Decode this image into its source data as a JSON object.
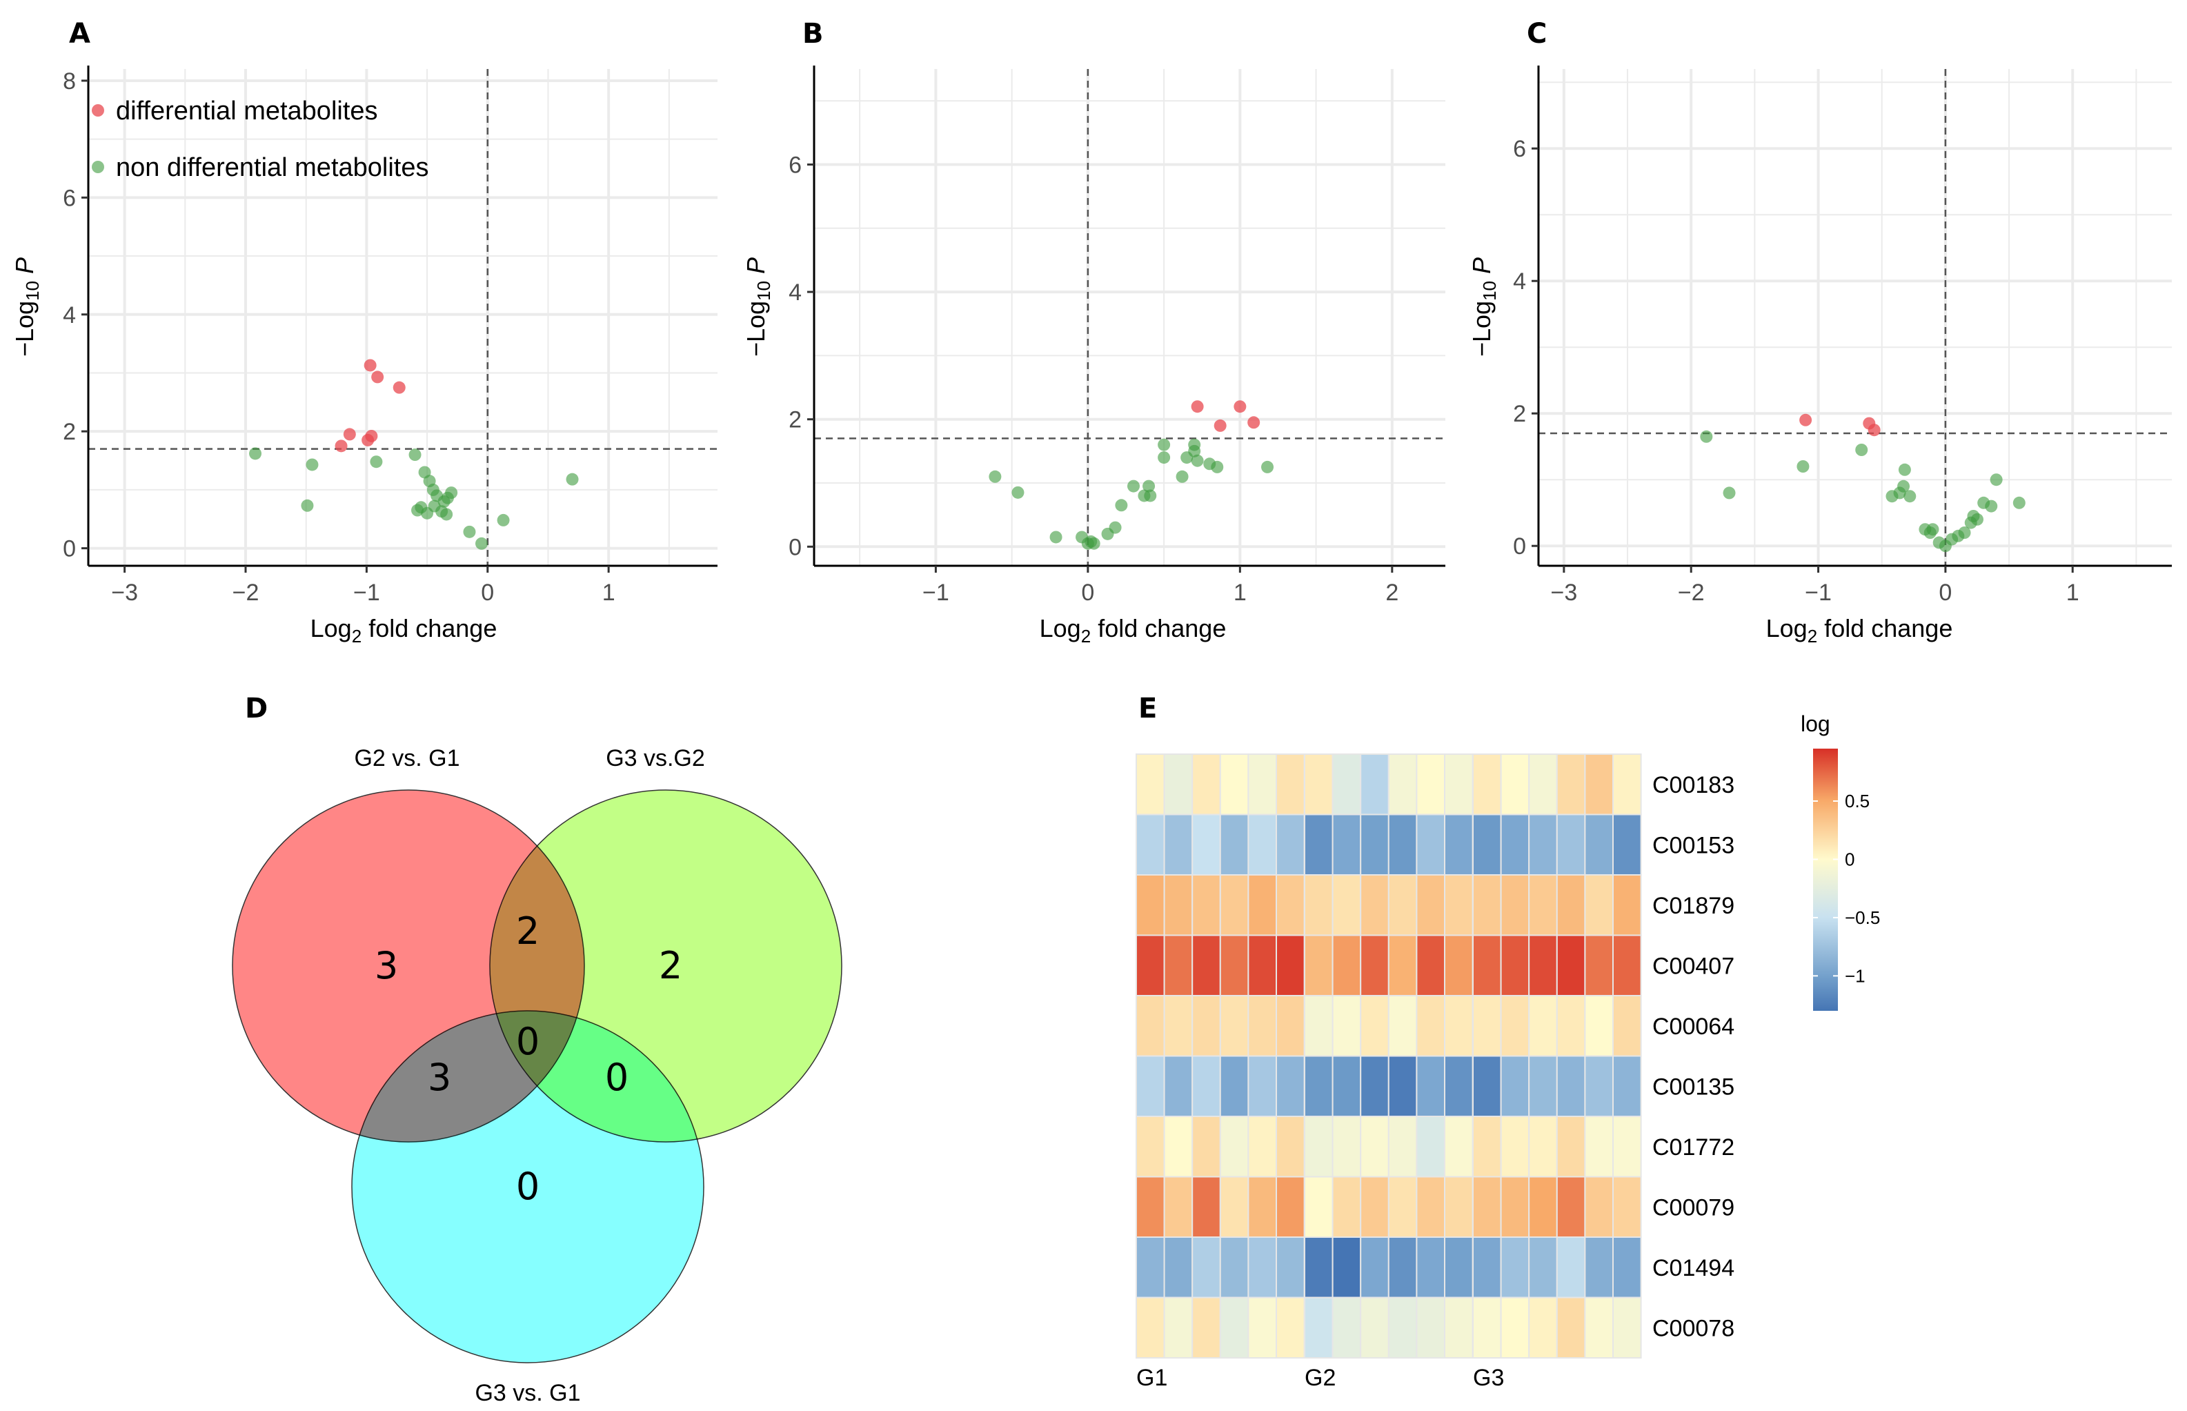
{
  "colors": {
    "sig": "#e8484f",
    "nonsig": "#3e9b3e",
    "grid": "#ebebeb",
    "setA": "#ff8080",
    "setB": "#bfff80",
    "setC": "#80ffff"
  },
  "legend": {
    "sig_label": "differential metabolites",
    "nonsig_label": "non differential metabolites"
  },
  "chart_data": [
    {
      "id": "A",
      "type": "scatter",
      "title": "A",
      "xlabel_main": "Log",
      "xlabel_sub": "2",
      "xlabel_tail": " fold change",
      "ylabel_main": "−Log",
      "ylabel_sub": "10",
      "ylabel_tail": " P",
      "xlim": [
        -3.3,
        1.9
      ],
      "ylim": [
        -0.3,
        8.2
      ],
      "xticks": [
        -3,
        -2,
        -1,
        0,
        1
      ],
      "yticks": [
        0,
        2,
        4,
        6,
        8
      ],
      "xtick_labels": [
        "−3",
        "−2",
        "−1",
        "0",
        "1"
      ],
      "ytick_labels": [
        "0",
        "2",
        "4",
        "6",
        "8"
      ],
      "hline": 1.7,
      "vline": 0,
      "sig_points": [
        [
          -0.97,
          3.13
        ],
        [
          -0.91,
          2.93
        ],
        [
          -0.73,
          2.75
        ],
        [
          -1.14,
          1.95
        ],
        [
          -1.21,
          1.75
        ],
        [
          -0.99,
          1.85
        ],
        [
          -0.96,
          1.92
        ]
      ],
      "nonsig_points": [
        [
          -1.92,
          1.62
        ],
        [
          -1.45,
          1.43
        ],
        [
          -1.49,
          0.73
        ],
        [
          -0.92,
          1.48
        ],
        [
          -0.6,
          1.6
        ],
        [
          -0.52,
          1.3
        ],
        [
          -0.48,
          1.15
        ],
        [
          -0.45,
          1.0
        ],
        [
          -0.42,
          0.9
        ],
        [
          -0.36,
          0.8
        ],
        [
          -0.33,
          0.86
        ],
        [
          -0.3,
          0.95
        ],
        [
          -0.55,
          0.7
        ],
        [
          -0.58,
          0.65
        ],
        [
          -0.5,
          0.6
        ],
        [
          -0.44,
          0.72
        ],
        [
          -0.38,
          0.63
        ],
        [
          -0.34,
          0.58
        ],
        [
          -0.15,
          0.28
        ],
        [
          -0.05,
          0.08
        ],
        [
          0.13,
          0.48
        ],
        [
          0.7,
          1.18
        ]
      ]
    },
    {
      "id": "B",
      "type": "scatter",
      "title": "B",
      "xlabel_main": "Log",
      "xlabel_sub": "2",
      "xlabel_tail": " fold change",
      "ylabel_main": "−Log",
      "ylabel_sub": "10",
      "ylabel_tail": " P",
      "xlim": [
        -1.8,
        2.35
      ],
      "ylim": [
        -0.3,
        7.5
      ],
      "xticks": [
        -1,
        0,
        1,
        2
      ],
      "yticks": [
        0,
        2,
        4,
        6
      ],
      "xtick_labels": [
        "−1",
        "0",
        "1",
        "2"
      ],
      "ytick_labels": [
        "0",
        "2",
        "4",
        "6"
      ],
      "hline": 1.7,
      "vline": 0,
      "sig_points": [
        [
          0.72,
          2.2
        ],
        [
          0.87,
          1.9
        ],
        [
          1.0,
          2.2
        ],
        [
          1.09,
          1.95
        ]
      ],
      "nonsig_points": [
        [
          -0.61,
          1.1
        ],
        [
          -0.46,
          0.85
        ],
        [
          -0.21,
          0.15
        ],
        [
          -0.04,
          0.15
        ],
        [
          0.0,
          0.05
        ],
        [
          0.02,
          0.08
        ],
        [
          0.04,
          0.05
        ],
        [
          0.13,
          0.2
        ],
        [
          0.18,
          0.3
        ],
        [
          0.22,
          0.65
        ],
        [
          0.3,
          0.95
        ],
        [
          0.37,
          0.8
        ],
        [
          0.41,
          0.8
        ],
        [
          0.4,
          0.95
        ],
        [
          0.5,
          1.4
        ],
        [
          0.5,
          1.6
        ],
        [
          0.62,
          1.1
        ],
        [
          0.65,
          1.4
        ],
        [
          0.7,
          1.5
        ],
        [
          0.7,
          1.6
        ],
        [
          0.72,
          1.35
        ],
        [
          0.8,
          1.3
        ],
        [
          0.85,
          1.25
        ],
        [
          1.18,
          1.25
        ]
      ]
    },
    {
      "id": "C",
      "type": "scatter",
      "title": "C",
      "xlabel_main": "Log",
      "xlabel_sub": "2",
      "xlabel_tail": " fold change",
      "ylabel_main": "−Log",
      "ylabel_sub": "10",
      "ylabel_tail": " P",
      "xlim": [
        -3.2,
        1.78
      ],
      "ylim": [
        -0.3,
        7.2
      ],
      "xticks": [
        -3,
        -2,
        -1,
        0,
        1
      ],
      "yticks": [
        0,
        2,
        4,
        6
      ],
      "xtick_labels": [
        "−3",
        "−2",
        "−1",
        "0",
        "1"
      ],
      "ytick_labels": [
        "0",
        "2",
        "4",
        "6"
      ],
      "hline": 1.7,
      "vline": 0,
      "sig_points": [
        [
          -1.1,
          1.9
        ],
        [
          -0.6,
          1.85
        ],
        [
          -0.56,
          1.75
        ]
      ],
      "nonsig_points": [
        [
          -1.88,
          1.65
        ],
        [
          -1.7,
          0.8
        ],
        [
          -1.12,
          1.2
        ],
        [
          -0.66,
          1.45
        ],
        [
          -0.42,
          0.75
        ],
        [
          -0.36,
          0.8
        ],
        [
          -0.33,
          0.9
        ],
        [
          -0.32,
          1.15
        ],
        [
          -0.28,
          0.75
        ],
        [
          -0.16,
          0.25
        ],
        [
          -0.12,
          0.2
        ],
        [
          -0.1,
          0.25
        ],
        [
          -0.05,
          0.05
        ],
        [
          0.0,
          0.0
        ],
        [
          0.05,
          0.1
        ],
        [
          0.1,
          0.15
        ],
        [
          0.15,
          0.2
        ],
        [
          0.2,
          0.35
        ],
        [
          0.22,
          0.45
        ],
        [
          0.25,
          0.4
        ],
        [
          0.3,
          0.65
        ],
        [
          0.36,
          0.6
        ],
        [
          0.4,
          1.0
        ],
        [
          0.58,
          0.65
        ]
      ]
    },
    {
      "id": "D",
      "type": "venn",
      "title": "D",
      "sets": [
        "G2 vs. G1",
        "G3 vs.G2",
        "G3 vs. G1"
      ],
      "counts": {
        "only_1": 3,
        "only_2": 2,
        "only_3": 0,
        "1_and_2": 2,
        "1_and_3": 3,
        "2_and_3": 0,
        "all": 0
      },
      "count_labels": {
        "only_1": "3",
        "only_2": "2",
        "only_3": "0",
        "1_and_2": "2",
        "1_and_3": "3",
        "2_and_3": "0",
        "all": "0"
      }
    },
    {
      "id": "E",
      "type": "heatmap",
      "title": "E",
      "legend_title": "log",
      "legend_ticks": [
        0.5,
        0,
        -0.5,
        -1
      ],
      "legend_tick_labels": [
        "0.5",
        "0",
        "−0.5",
        "−1"
      ],
      "value_range": [
        -1.3,
        0.95
      ],
      "rows": [
        "C00183",
        "C00153",
        "C01879",
        "C00407",
        "C00064",
        "C00135",
        "C01772",
        "C00079",
        "C01494",
        "C00078"
      ],
      "groups": [
        "G1",
        "G2",
        "G3"
      ],
      "values": [
        [
          0.05,
          -0.2,
          0.1,
          0.0,
          -0.1,
          0.15,
          0.1,
          -0.3,
          -0.6,
          -0.1,
          0.0,
          -0.1,
          0.1,
          0.0,
          -0.1,
          0.2,
          0.3,
          0.05
        ],
        [
          -0.6,
          -0.75,
          -0.5,
          -0.8,
          -0.55,
          -0.75,
          -1.1,
          -0.95,
          -1.0,
          -1.05,
          -0.75,
          -0.95,
          -1.05,
          -0.95,
          -0.85,
          -0.75,
          -0.9,
          -1.1
        ],
        [
          0.45,
          0.4,
          0.35,
          0.3,
          0.45,
          0.3,
          0.2,
          0.15,
          0.3,
          0.2,
          0.35,
          0.25,
          0.3,
          0.35,
          0.3,
          0.4,
          0.2,
          0.45
        ],
        [
          0.85,
          0.7,
          0.85,
          0.7,
          0.85,
          0.9,
          0.4,
          0.55,
          0.75,
          0.45,
          0.8,
          0.55,
          0.75,
          0.8,
          0.85,
          0.9,
          0.7,
          0.75
        ],
        [
          0.2,
          0.15,
          0.2,
          0.15,
          0.2,
          0.25,
          -0.1,
          -0.05,
          0.1,
          -0.05,
          0.15,
          0.1,
          0.1,
          0.15,
          0.05,
          0.1,
          0.0,
          0.2
        ],
        [
          -0.6,
          -0.85,
          -0.6,
          -0.95,
          -0.7,
          -0.85,
          -1.05,
          -1.05,
          -1.2,
          -1.25,
          -0.95,
          -1.1,
          -1.2,
          -0.85,
          -0.8,
          -0.85,
          -0.75,
          -0.85
        ],
        [
          0.15,
          0.0,
          0.2,
          -0.1,
          0.05,
          0.2,
          -0.15,
          -0.1,
          -0.05,
          -0.1,
          -0.35,
          -0.05,
          0.15,
          0.05,
          0.05,
          0.2,
          -0.05,
          -0.05
        ],
        [
          0.6,
          0.3,
          0.7,
          0.15,
          0.4,
          0.55,
          0.0,
          0.2,
          0.3,
          0.15,
          0.3,
          0.2,
          0.35,
          0.4,
          0.5,
          0.65,
          0.3,
          0.25
        ],
        [
          -0.85,
          -0.9,
          -0.65,
          -0.8,
          -0.7,
          -0.8,
          -1.25,
          -1.3,
          -0.95,
          -1.1,
          -0.95,
          -1.0,
          -0.95,
          -0.75,
          -0.8,
          -0.55,
          -0.9,
          -0.95
        ],
        [
          0.1,
          -0.1,
          0.15,
          -0.25,
          -0.05,
          0.05,
          -0.45,
          -0.25,
          -0.15,
          -0.25,
          -0.2,
          -0.1,
          -0.05,
          0.0,
          0.05,
          0.2,
          -0.05,
          -0.1
        ]
      ]
    }
  ]
}
